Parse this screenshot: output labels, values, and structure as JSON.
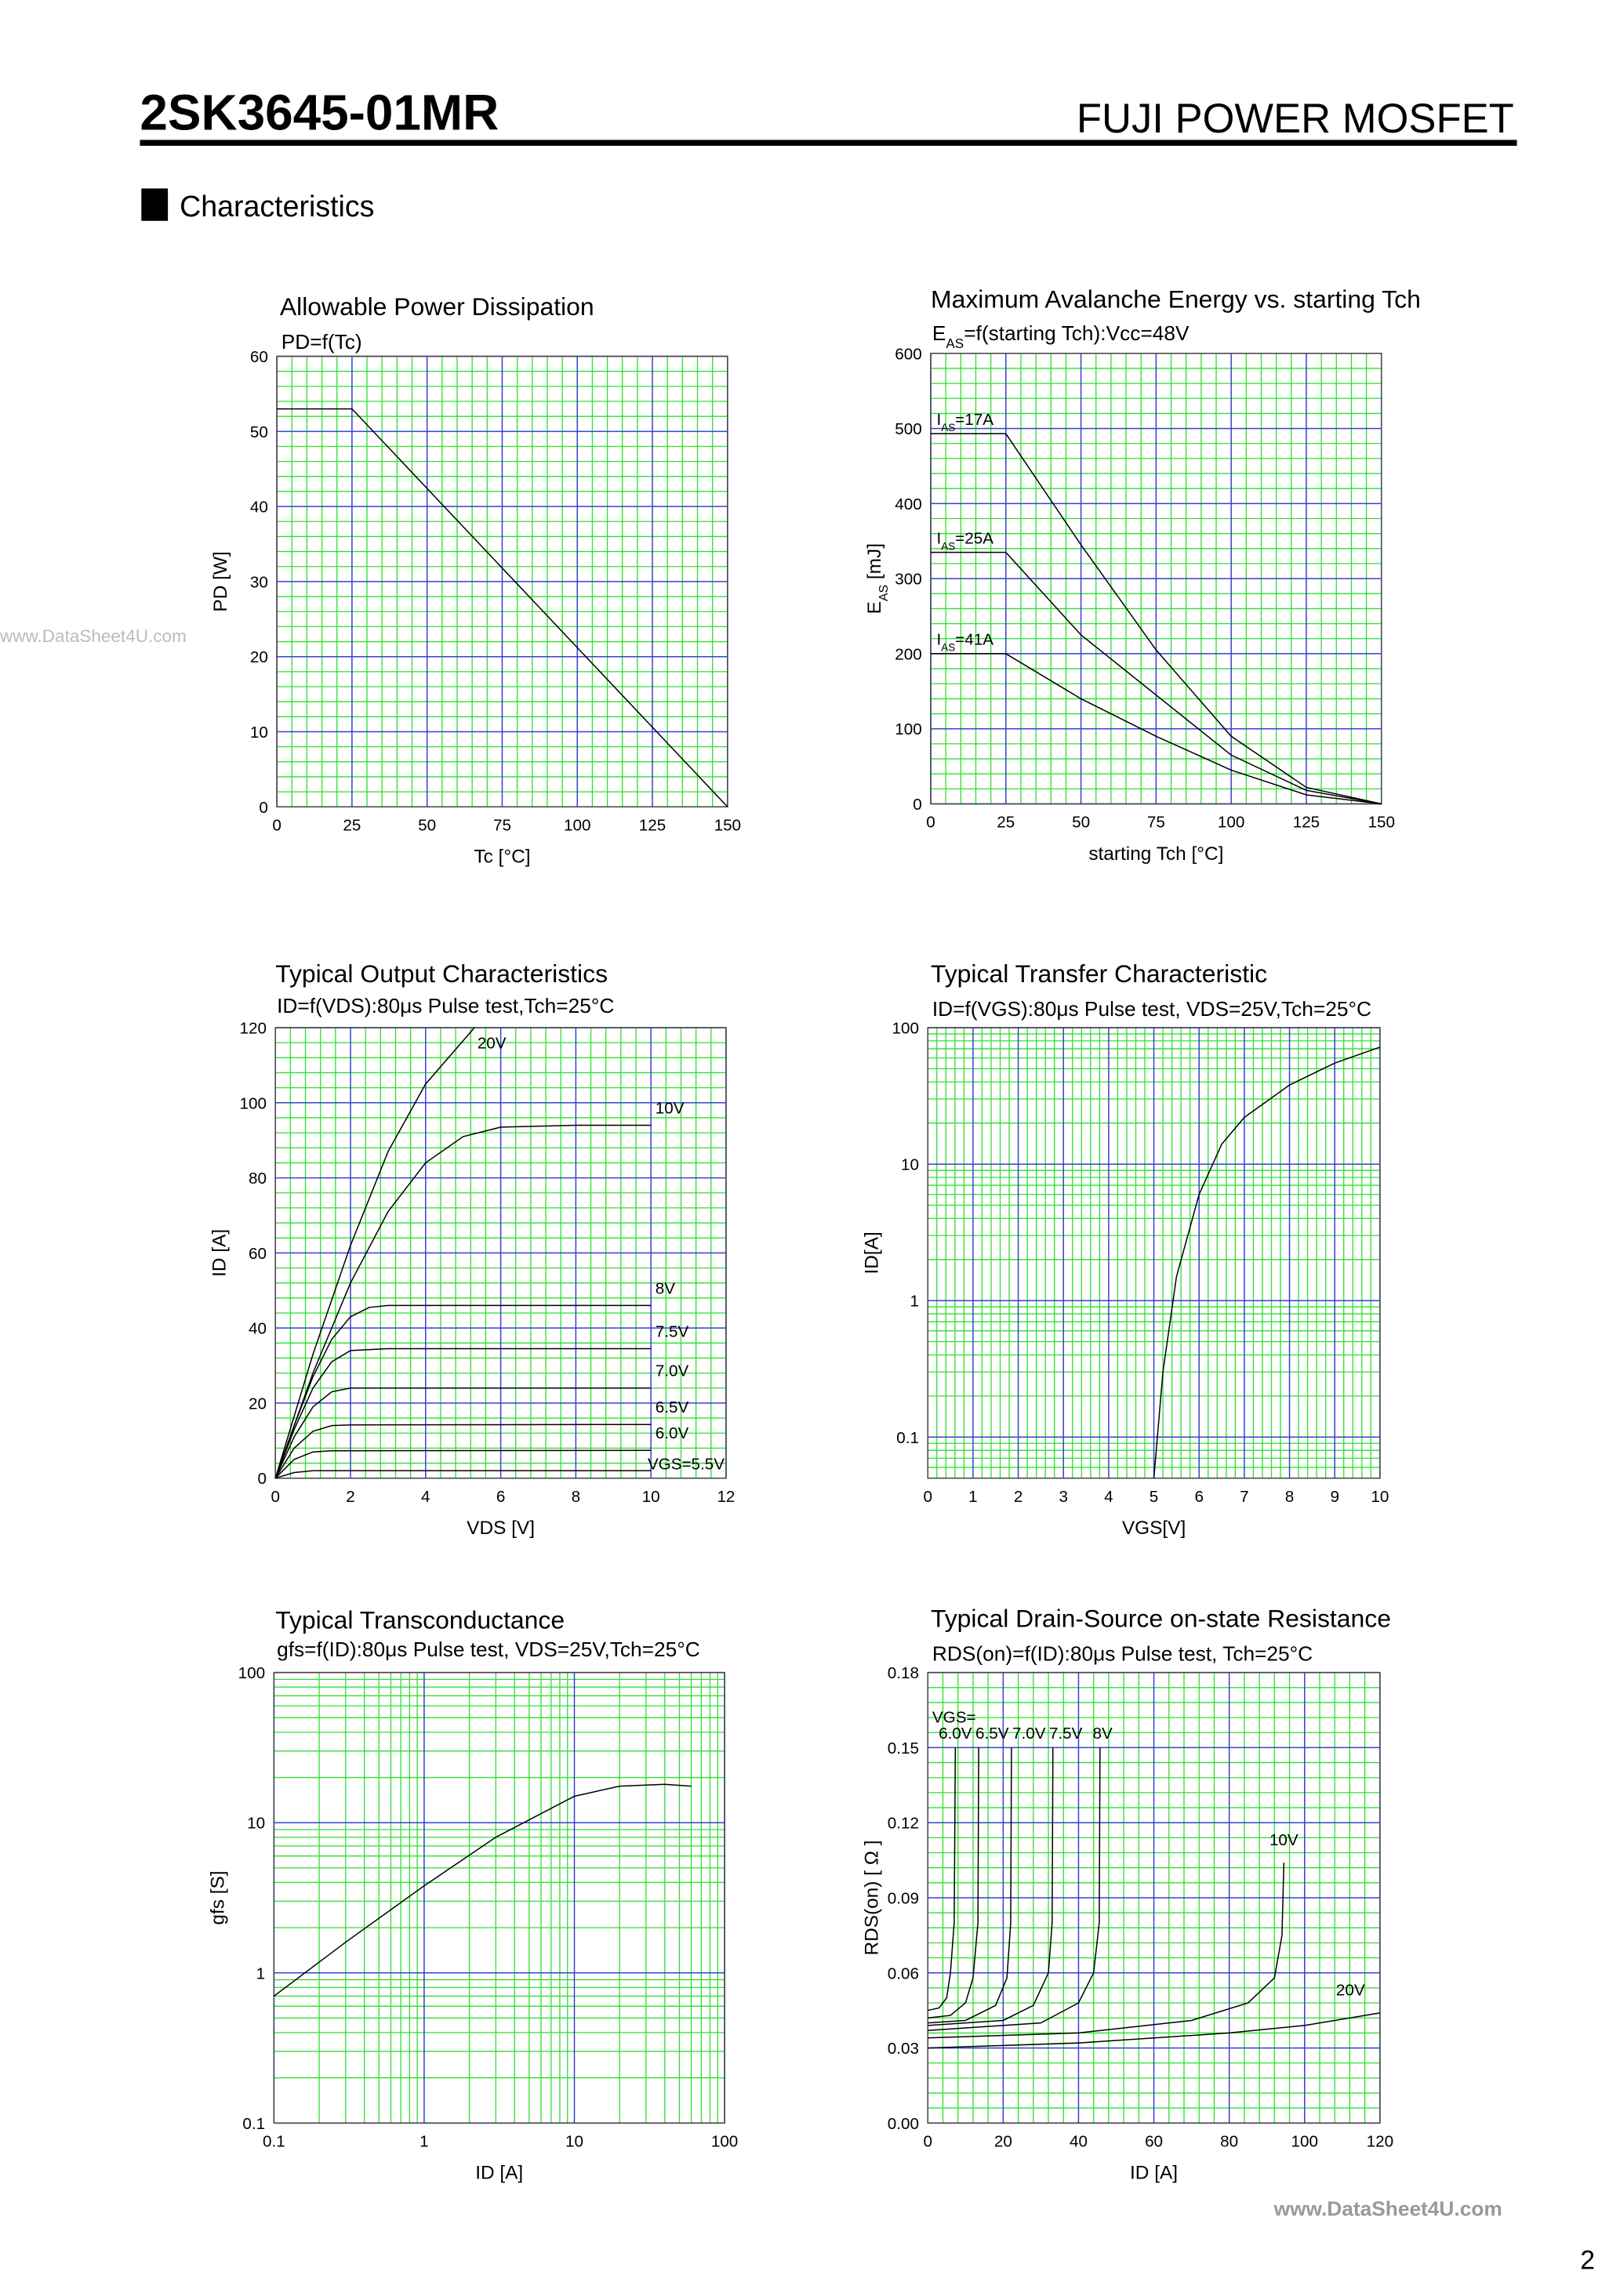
{
  "header": {
    "part_number": "2SK3645-01MR",
    "brand": "FUJI POWER MOSFET",
    "section": "Characteristics"
  },
  "watermarks": [
    "www.DataSheet4U.com",
    "www.DataSheet4U.com"
  ],
  "page_number": "2",
  "chart_data": [
    {
      "type": "line",
      "title": "Allowable Power Dissipation",
      "subtitle": "PD=f(Tc)",
      "xlabel": "Tc [°C]",
      "ylabel": "PD [W]",
      "xlim": [
        0,
        150
      ],
      "ylim": [
        0,
        60
      ],
      "xticks": [
        0,
        25,
        50,
        75,
        100,
        125,
        150
      ],
      "yticks": [
        0,
        10,
        20,
        30,
        40,
        50,
        60
      ],
      "grid": true,
      "series": [
        {
          "color": "#000000",
          "x": [
            0,
            25,
            150
          ],
          "values": [
            53,
            53,
            0
          ]
        }
      ]
    },
    {
      "type": "line",
      "title": "Maximum Avalanche Energy vs. starting Tch",
      "subtitle": [
        "E",
        "AS",
        "=f(starting Tch):Vcc=48V"
      ],
      "xlabel": "starting Tch [°C]",
      "ylabel": [
        "E",
        "AS",
        " [mJ]"
      ],
      "xlim": [
        0,
        150
      ],
      "ylim": [
        0,
        600
      ],
      "xticks": [
        0,
        25,
        50,
        75,
        100,
        125,
        150
      ],
      "yticks": [
        0,
        100,
        200,
        300,
        400,
        500,
        600
      ],
      "grid": true,
      "series": [
        {
          "name": [
            "I",
            "AS",
            "=17A"
          ],
          "color": "#000000",
          "x": [
            0,
            25,
            50,
            75,
            100,
            125,
            150
          ],
          "values": [
            493,
            493,
            345,
            205,
            90,
            22,
            0
          ]
        },
        {
          "name": [
            "I",
            "AS",
            "=25A"
          ],
          "color": "#000000",
          "x": [
            0,
            25,
            50,
            75,
            100,
            125,
            150
          ],
          "values": [
            335,
            335,
            225,
            145,
            65,
            18,
            0
          ]
        },
        {
          "name": [
            "I",
            "AS",
            "=41A"
          ],
          "color": "#000000",
          "x": [
            0,
            25,
            50,
            75,
            100,
            125,
            150
          ],
          "values": [
            200,
            200,
            140,
            90,
            45,
            12,
            0
          ]
        }
      ]
    },
    {
      "type": "line",
      "title": "Typical Output Characteristics",
      "subtitle": "ID=f(VDS):80μs Pulse test,Tch=25°C",
      "xlabel": "VDS [V]",
      "ylabel": "ID [A]",
      "xlim": [
        0,
        12
      ],
      "ylim": [
        0,
        120
      ],
      "xticks": [
        0,
        2,
        4,
        6,
        8,
        10,
        12
      ],
      "yticks": [
        0,
        20,
        40,
        60,
        80,
        100,
        120
      ],
      "grid": true,
      "series": [
        {
          "name": "20V",
          "color": "#000000",
          "x": [
            0,
            1,
            2,
            3,
            4,
            5.3
          ],
          "values": [
            0,
            33,
            62,
            87,
            105,
            120
          ]
        },
        {
          "name": "10V",
          "color": "#000000",
          "x": [
            0,
            1,
            2,
            3,
            4,
            5,
            6,
            8,
            10
          ],
          "values": [
            0,
            28,
            52,
            71,
            84,
            91,
            93.5,
            94,
            94
          ]
        },
        {
          "name": "8V",
          "color": "#000000",
          "x": [
            0,
            0.5,
            1,
            1.5,
            2,
            2.5,
            3,
            5,
            10
          ],
          "values": [
            0,
            14,
            27,
            37,
            43,
            45.5,
            46,
            46,
            46
          ]
        },
        {
          "name": "7.5V",
          "color": "#000000",
          "x": [
            0,
            0.5,
            1,
            1.5,
            2,
            3,
            10
          ],
          "values": [
            0,
            13,
            24,
            31,
            34,
            34.5,
            34.5
          ]
        },
        {
          "name": "7.0V",
          "color": "#000000",
          "x": [
            0,
            0.5,
            1,
            1.5,
            2,
            3,
            10
          ],
          "values": [
            0,
            11,
            19,
            23,
            24,
            24,
            24
          ]
        },
        {
          "name": "6.5V",
          "color": "#000000",
          "x": [
            0,
            0.5,
            1,
            1.5,
            2,
            10
          ],
          "values": [
            0,
            8,
            12.5,
            14,
            14.2,
            14.3
          ]
        },
        {
          "name": "6.0V",
          "color": "#000000",
          "x": [
            0,
            0.5,
            1,
            1.5,
            10
          ],
          "values": [
            0,
            5,
            7,
            7.3,
            7.4
          ]
        },
        {
          "name": "VGS=5.5V",
          "color": "#000000",
          "x": [
            0,
            0.5,
            1,
            10
          ],
          "values": [
            0,
            1.5,
            2,
            2
          ]
        }
      ]
    },
    {
      "type": "line",
      "title": "Typical Transfer Characteristic",
      "subtitle": "ID=f(VGS):80μs Pulse test, VDS=25V,Tch=25°C",
      "xlabel": "VGS[V]",
      "ylabel": "ID[A]",
      "xlim": [
        0,
        10
      ],
      "ylim": [
        0.05,
        100
      ],
      "yscale": "log",
      "xticks": [
        0,
        1,
        2,
        3,
        4,
        5,
        6,
        7,
        8,
        9,
        10
      ],
      "yticks": [
        0.1,
        1,
        10,
        100
      ],
      "grid": true,
      "series": [
        {
          "color": "#000000",
          "x": [
            5.0,
            5.2,
            5.5,
            6,
            6.5,
            7,
            8,
            9,
            10
          ],
          "values": [
            0.05,
            0.3,
            1.5,
            6,
            14,
            22,
            38,
            55,
            72
          ]
        }
      ]
    },
    {
      "type": "line",
      "title": "Typical Transconductance",
      "subtitle": "gfs=f(ID):80μs Pulse test, VDS=25V,Tch=25°C",
      "xlabel": "ID [A]",
      "ylabel": "gfs [S]",
      "xlim": [
        0.1,
        100
      ],
      "ylim": [
        0.1,
        100
      ],
      "xscale": "log",
      "yscale": "log",
      "xticks": [
        0.1,
        1,
        10,
        100
      ],
      "yticks": [
        0.1,
        1,
        10,
        100
      ],
      "grid": true,
      "series": [
        {
          "color": "#000000",
          "x": [
            0.1,
            0.3,
            1,
            3,
            10,
            20,
            40,
            60
          ],
          "values": [
            0.7,
            1.6,
            3.8,
            8,
            15,
            17.5,
            18,
            17.5
          ]
        }
      ]
    },
    {
      "type": "line",
      "title": "Typical Drain-Source on-state Resistance",
      "subtitle": "RDS(on)=f(ID):80μs Pulse test, Tch=25°C",
      "xlabel": "ID [A]",
      "ylabel": "RDS(on) [ Ω ]",
      "annotation": "VGS=",
      "xlim": [
        0,
        120
      ],
      "ylim": [
        0,
        0.18
      ],
      "xticks": [
        0,
        20,
        40,
        60,
        80,
        100,
        120
      ],
      "yticks": [
        {
          "value": 0,
          "label": "0.00"
        },
        0.03,
        0.06,
        0.09,
        0.12,
        0.15,
        0.18
      ],
      "grid": true,
      "series": [
        {
          "name": "6.0V",
          "color": "#000000",
          "x": [
            0,
            3,
            5,
            6,
            7,
            7.3
          ],
          "values": [
            0.045,
            0.046,
            0.05,
            0.06,
            0.08,
            0.15
          ]
        },
        {
          "name": "6.5V",
          "color": "#000000",
          "x": [
            0,
            6,
            10,
            12,
            13.3,
            13.5
          ],
          "values": [
            0.042,
            0.043,
            0.048,
            0.058,
            0.08,
            0.15
          ]
        },
        {
          "name": "7.0V",
          "color": "#000000",
          "x": [
            0,
            10,
            18,
            21,
            22,
            22.2
          ],
          "values": [
            0.04,
            0.041,
            0.047,
            0.058,
            0.08,
            0.15
          ]
        },
        {
          "name": "7.5V",
          "color": "#000000",
          "x": [
            0,
            20,
            28,
            32,
            33,
            33.2
          ],
          "values": [
            0.039,
            0.041,
            0.047,
            0.06,
            0.08,
            0.15
          ]
        },
        {
          "name": "8V",
          "color": "#000000",
          "x": [
            0,
            30,
            40,
            44,
            45.5,
            45.7
          ],
          "values": [
            0.037,
            0.04,
            0.048,
            0.06,
            0.08,
            0.15
          ]
        },
        {
          "name": "10V",
          "color": "#000000",
          "x": [
            0,
            40,
            70,
            85,
            92,
            94,
            94.5
          ],
          "values": [
            0.034,
            0.036,
            0.041,
            0.048,
            0.058,
            0.075,
            0.104
          ]
        },
        {
          "name": "20V",
          "color": "#000000",
          "x": [
            0,
            40,
            80,
            100,
            120
          ],
          "values": [
            0.03,
            0.032,
            0.036,
            0.039,
            0.044
          ]
        }
      ]
    }
  ]
}
